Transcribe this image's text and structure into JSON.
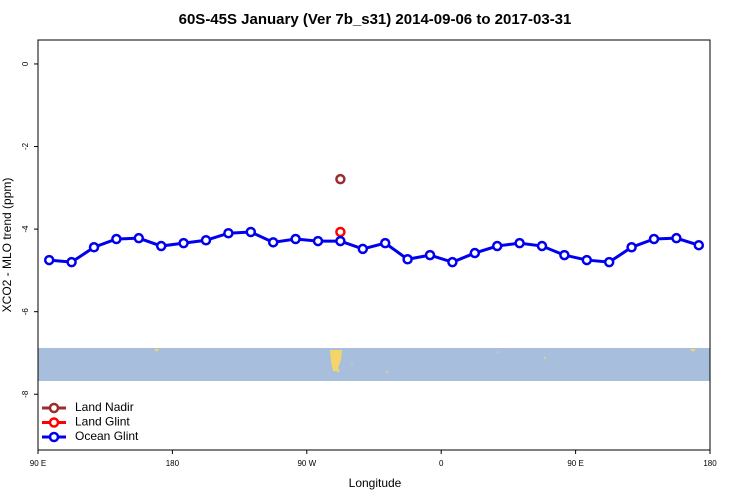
{
  "chart_data": {
    "type": "line",
    "title": "60S-45S January (Ver 7b_s31)   2014-09-06 to 2017-03-31",
    "x_label": "Longitude",
    "y_label": "XCO2 - MLO trend (ppm)",
    "xlim": [
      90,
      540
    ],
    "ylim": [
      -9.35,
      0.58
    ],
    "xticks": [
      {
        "value": 90,
        "label": "90 E"
      },
      180,
      {
        "value": 270,
        "label": "90 W"
      },
      {
        "value": 360,
        "label": "0"
      },
      {
        "value": 450,
        "label": "90 E"
      },
      {
        "value": 540,
        "label": "180"
      }
    ],
    "yticks": [
      0,
      -2,
      -4,
      -6,
      -8
    ],
    "legend": "bottom-left",
    "series": [
      {
        "name": "Land Nadir",
        "color": "#9b2d2d",
        "x": [
          292.5
        ],
        "values": [
          -2.79
        ]
      },
      {
        "name": "Land Glint",
        "color": "#ff0000",
        "x": [
          292.5
        ],
        "values": [
          -4.07
        ]
      },
      {
        "name": "Ocean Glint",
        "color": "#0000ee",
        "x": [
          97.5,
          112.5,
          127.5,
          142.5,
          157.5,
          172.5,
          187.5,
          202.5,
          217.5,
          232.5,
          247.5,
          262.5,
          277.5,
          292.5,
          307.5,
          322.5,
          337.5,
          352.5,
          367.5,
          382.5,
          397.5,
          412.5,
          427.5,
          442.5,
          457.5,
          472.5,
          487.5,
          502.5,
          517.5,
          532.5
        ],
        "values": [
          -4.75,
          -4.8,
          -4.44,
          -4.24,
          -4.22,
          -4.41,
          -4.34,
          -4.27,
          -4.1,
          -4.07,
          -4.32,
          -4.24,
          -4.29,
          -4.29,
          -4.48,
          -4.34,
          -4.73,
          -4.63,
          -4.8,
          -4.58,
          -4.41,
          -4.34,
          -4.41,
          -4.63,
          -4.75,
          -4.8,
          -4.44,
          -4.24,
          -4.22,
          -4.39
        ]
      }
    ]
  }
}
